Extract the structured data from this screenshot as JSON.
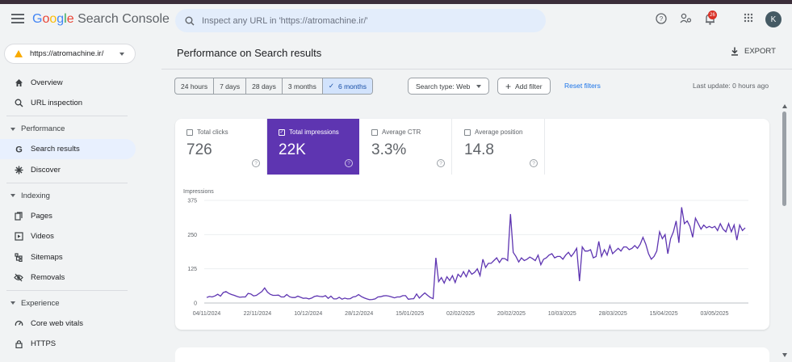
{
  "app": {
    "logo": {
      "g1": "G",
      "g2": "o",
      "g3": "o",
      "g4": "g",
      "g5": "l",
      "g6": "e",
      "rest": " Search Console"
    },
    "search_placeholder": "Inspect any URL in 'https://atromachine.ir/'",
    "notifications_count": "26",
    "avatar_letter": "K"
  },
  "property": "https://atromachine.ir/",
  "sidebar": {
    "items": [
      {
        "label": "Overview",
        "icon": "home-icon"
      },
      {
        "label": "URL inspection",
        "icon": "search-icon"
      }
    ],
    "sections": [
      {
        "label": "Performance",
        "items": [
          {
            "label": "Search results",
            "icon": "google-g-icon",
            "active": true
          },
          {
            "label": "Discover",
            "icon": "asterisk-icon"
          }
        ]
      },
      {
        "label": "Indexing",
        "items": [
          {
            "label": "Pages",
            "icon": "pages-icon"
          },
          {
            "label": "Videos",
            "icon": "videos-icon"
          },
          {
            "label": "Sitemaps",
            "icon": "sitemap-icon"
          },
          {
            "label": "Removals",
            "icon": "eye-off-icon"
          }
        ]
      },
      {
        "label": "Experience",
        "items": [
          {
            "label": "Core web vitals",
            "icon": "gauge-icon"
          },
          {
            "label": "HTTPS",
            "icon": "lock-icon"
          }
        ]
      }
    ]
  },
  "main": {
    "title": "Performance on Search results",
    "export_label": "EXPORT",
    "date_ranges": [
      "24 hours",
      "7 days",
      "28 days",
      "3 months",
      "6 months"
    ],
    "selected_range_check": "✓",
    "search_type": "Search type: Web",
    "add_filter": "Add filter",
    "reset_filters": "Reset filters",
    "last_update": "Last update: 0 hours ago"
  },
  "metrics": [
    {
      "label": "Total clicks",
      "value": "726",
      "selected": false
    },
    {
      "label": "Total impressions",
      "value": "22K",
      "selected": true
    },
    {
      "label": "Average CTR",
      "value": "3.3%",
      "selected": false
    },
    {
      "label": "Average position",
      "value": "14.8",
      "selected": false
    }
  ],
  "help_glyph": "?",
  "colors": {
    "accent": "#5e35b1",
    "line": "#5e35b1",
    "link": "#1a73e8"
  },
  "chart_data": {
    "type": "line",
    "ylabel": "Impressions",
    "yticks": [
      "375",
      "250",
      "125",
      "0"
    ],
    "ylim": [
      0,
      375
    ],
    "xticks": [
      "04/11/2024",
      "22/11/2024",
      "10/12/2024",
      "28/12/2024",
      "15/01/2025",
      "02/02/2025",
      "20/02/2025",
      "10/03/2025",
      "28/03/2025",
      "15/04/2025",
      "03/05/2025"
    ],
    "series": [
      {
        "values": [
          20,
          24,
          22,
          26,
          32,
          25,
          38,
          42,
          35,
          31,
          28,
          24,
          21,
          22,
          22,
          35,
          33,
          26,
          28,
          35,
          42,
          55,
          40,
          32,
          28,
          28,
          29,
          22,
          22,
          31,
          23,
          20,
          20,
          25,
          21,
          17,
          18,
          15,
          18,
          24,
          26,
          24,
          23,
          27,
          17,
          25,
          15,
          15,
          21,
          14,
          18,
          15,
          16,
          22,
          24,
          31,
          24,
          19,
          15,
          12,
          13,
          15,
          22,
          23,
          26,
          27,
          25,
          22,
          19,
          22,
          22,
          27,
          27,
          14,
          15,
          16,
          33,
          18,
          28,
          37,
          28,
          20,
          16,
          165,
          78,
          93,
          73,
          96,
          82,
          100,
          75,
          105,
          95,
          115,
          96,
          120,
          105,
          112,
          125,
          100,
          160,
          130,
          145,
          145,
          155,
          165,
          148,
          163,
          162,
          155,
          325,
          185,
          170,
          150,
          165,
          155,
          160,
          168,
          162,
          155,
          175,
          140,
          160,
          165,
          175,
          180,
          165,
          170,
          170,
          160,
          175,
          185,
          170,
          183,
          200,
          80,
          205,
          190,
          190,
          195,
          165,
          170,
          225,
          170,
          195,
          175,
          210,
          180,
          190,
          200,
          190,
          205,
          205,
          195,
          200,
          210,
          200,
          215,
          240,
          215,
          180,
          160,
          170,
          190,
          260,
          235,
          250,
          180,
          235,
          260,
          300,
          220,
          350,
          290,
          300,
          280,
          240,
          310,
          290,
          270,
          285,
          275,
          280,
          275,
          280,
          265,
          290,
          270,
          260,
          290,
          260,
          285,
          230,
          285,
          265,
          275
        ]
      }
    ]
  }
}
